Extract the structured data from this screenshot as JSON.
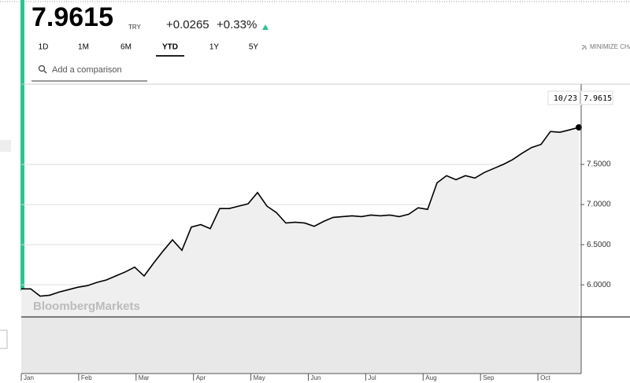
{
  "header": {
    "price": "7.9615",
    "currency": "TRY",
    "change": "+0.0265",
    "change_pct": "+0.33%",
    "tabs": [
      "1D",
      "1M",
      "6M",
      "YTD",
      "1Y",
      "5Y"
    ],
    "active_tab_index": 3,
    "minimize": "MINIMIZE CHART",
    "search_placeholder": "Add a comparison"
  },
  "chart_data": {
    "type": "line",
    "color": "#000000",
    "watermark": "BloombergMarkets",
    "last_date": "10/23",
    "x_labels": [
      "Jan",
      "Feb",
      "Mar",
      "Apr",
      "May",
      "Jun",
      "Jul",
      "Aug",
      "Sep",
      "Oct"
    ],
    "values": [
      5.95,
      5.95,
      5.86,
      5.87,
      5.91,
      5.94,
      5.97,
      5.99,
      6.03,
      6.06,
      6.11,
      6.16,
      6.22,
      6.11,
      6.27,
      6.42,
      6.56,
      6.43,
      6.72,
      6.75,
      6.7,
      6.95,
      6.95,
      6.98,
      7.01,
      7.15,
      6.98,
      6.9,
      6.77,
      6.78,
      6.77,
      6.73,
      6.79,
      6.84,
      6.85,
      6.86,
      6.85,
      6.87,
      6.86,
      6.87,
      6.85,
      6.88,
      6.96,
      6.94,
      7.27,
      7.36,
      7.31,
      7.36,
      7.33,
      7.4,
      7.45,
      7.5,
      7.56,
      7.64,
      7.71,
      7.75,
      7.91,
      7.9,
      7.93,
      7.9615
    ],
    "ylim": [
      5.6,
      8.5
    ],
    "yticks": [
      {
        "value": 6,
        "label": "6.0000"
      },
      {
        "value": 6.5,
        "label": "6.5000"
      },
      {
        "value": 7,
        "label": "7.0000"
      },
      {
        "value": 7.5,
        "label": "7.5000"
      }
    ],
    "grid": true
  }
}
